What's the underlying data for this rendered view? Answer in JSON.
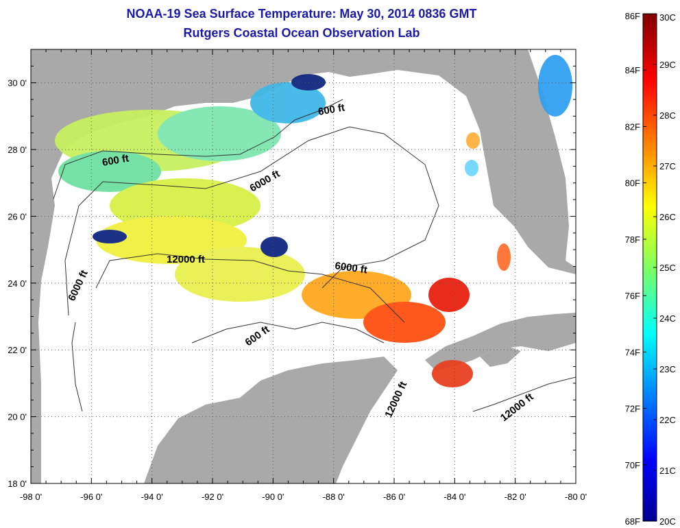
{
  "title": "NOAA-19 Sea Surface Temperature:  May 30, 2014 0836 GMT",
  "subtitle": "Rutgers Coastal Ocean Observation Lab",
  "map": {
    "lon_range": [
      -98,
      -80
    ],
    "lat_range": [
      18,
      31
    ],
    "x_ticks": [
      "-98 0'",
      "-96 0'",
      "-94 0'",
      "-92 0'",
      "-90 0'",
      "-88 0'",
      "-86 0'",
      "-84 0'",
      "-82 0'",
      "-80 0'"
    ],
    "y_ticks": [
      "30 0'",
      "28 0'",
      "26 0'",
      "24 0'",
      "22 0'",
      "20 0'",
      "18 0'"
    ],
    "land_color": "#a9a9a9",
    "grid": "dotted",
    "contour_labels": [
      "600 ft",
      "600 ft",
      "6000 ft",
      "12000 ft",
      "6000 ft",
      "6000 ft",
      "600 ft",
      "12000 ft",
      "12000 ft"
    ]
  },
  "colorbar": {
    "f_labels": [
      "86F",
      "84F",
      "82F",
      "80F",
      "78F",
      "76F",
      "74F",
      "72F",
      "70F",
      "68F"
    ],
    "c_labels": [
      "30C",
      "29C",
      "28C",
      "27C",
      "26C",
      "25C",
      "24C",
      "23C",
      "22C",
      "21C",
      "20C"
    ],
    "min_c": 20,
    "max_c": 30
  }
}
